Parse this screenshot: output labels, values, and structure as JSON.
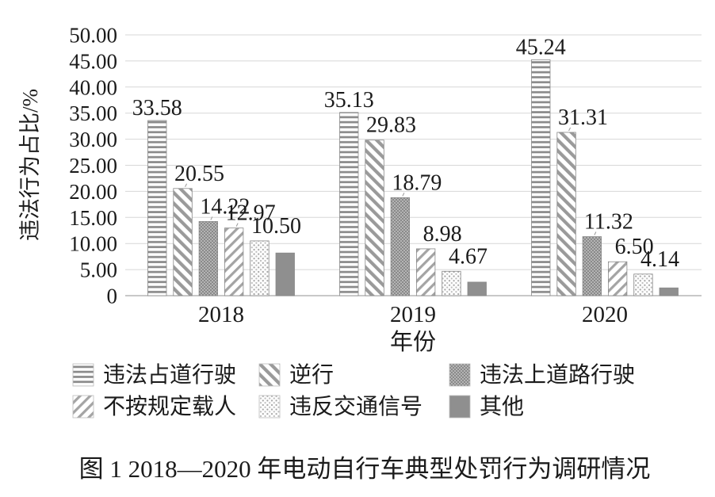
{
  "figure": {
    "caption": "图 1  2018—2020 年电动自行车典型处罚行为调研情况"
  },
  "chart_data": {
    "type": "bar",
    "title": "图 1 2018—2020 年电动自行车典型处罚行为调研情况",
    "xlabel": "年份",
    "ylabel": "违法行为占比/%",
    "ylim": [
      0,
      50
    ],
    "ytick_step": 5,
    "ytick_labels": [
      "0",
      "5.00",
      "10.00",
      "15.00",
      "20.00",
      "25.00",
      "30.00",
      "35.00",
      "40.00",
      "45.00",
      "50.00"
    ],
    "grid": true,
    "legend_position": "bottom",
    "categories": [
      "2018",
      "2019",
      "2020"
    ],
    "series": [
      {
        "name": "违法占道行驶",
        "pattern": "horizontal-stripes",
        "values": [
          33.58,
          35.13,
          45.24
        ],
        "labeled": true
      },
      {
        "name": "逆行",
        "pattern": "diagonal-stripes-down",
        "values": [
          20.55,
          29.83,
          31.31
        ],
        "labeled": true
      },
      {
        "name": "违法上道路行驶",
        "pattern": "diamond-mesh",
        "values": [
          14.22,
          18.79,
          11.32
        ],
        "labeled": true
      },
      {
        "name": "不按规定载人",
        "pattern": "diagonal-stripes-up",
        "values": [
          12.97,
          8.98,
          6.5
        ],
        "labeled": true
      },
      {
        "name": "违反交通信号",
        "pattern": "dot-grid",
        "values": [
          10.5,
          4.67,
          4.14
        ],
        "labeled": true
      },
      {
        "name": "其他",
        "pattern": "solid",
        "values": [
          8.18,
          2.6,
          1.49
        ],
        "labeled": false,
        "note": "bars shown without data labels; values estimated from gridlines"
      }
    ],
    "colors": {
      "text": "#1b1b1b",
      "gridline": "#d7d7d7",
      "axis_line": "#a8a8a8",
      "bar_stroke": "#898989",
      "pattern_gray": "#8f8f8f",
      "background": "#ffffff"
    }
  }
}
